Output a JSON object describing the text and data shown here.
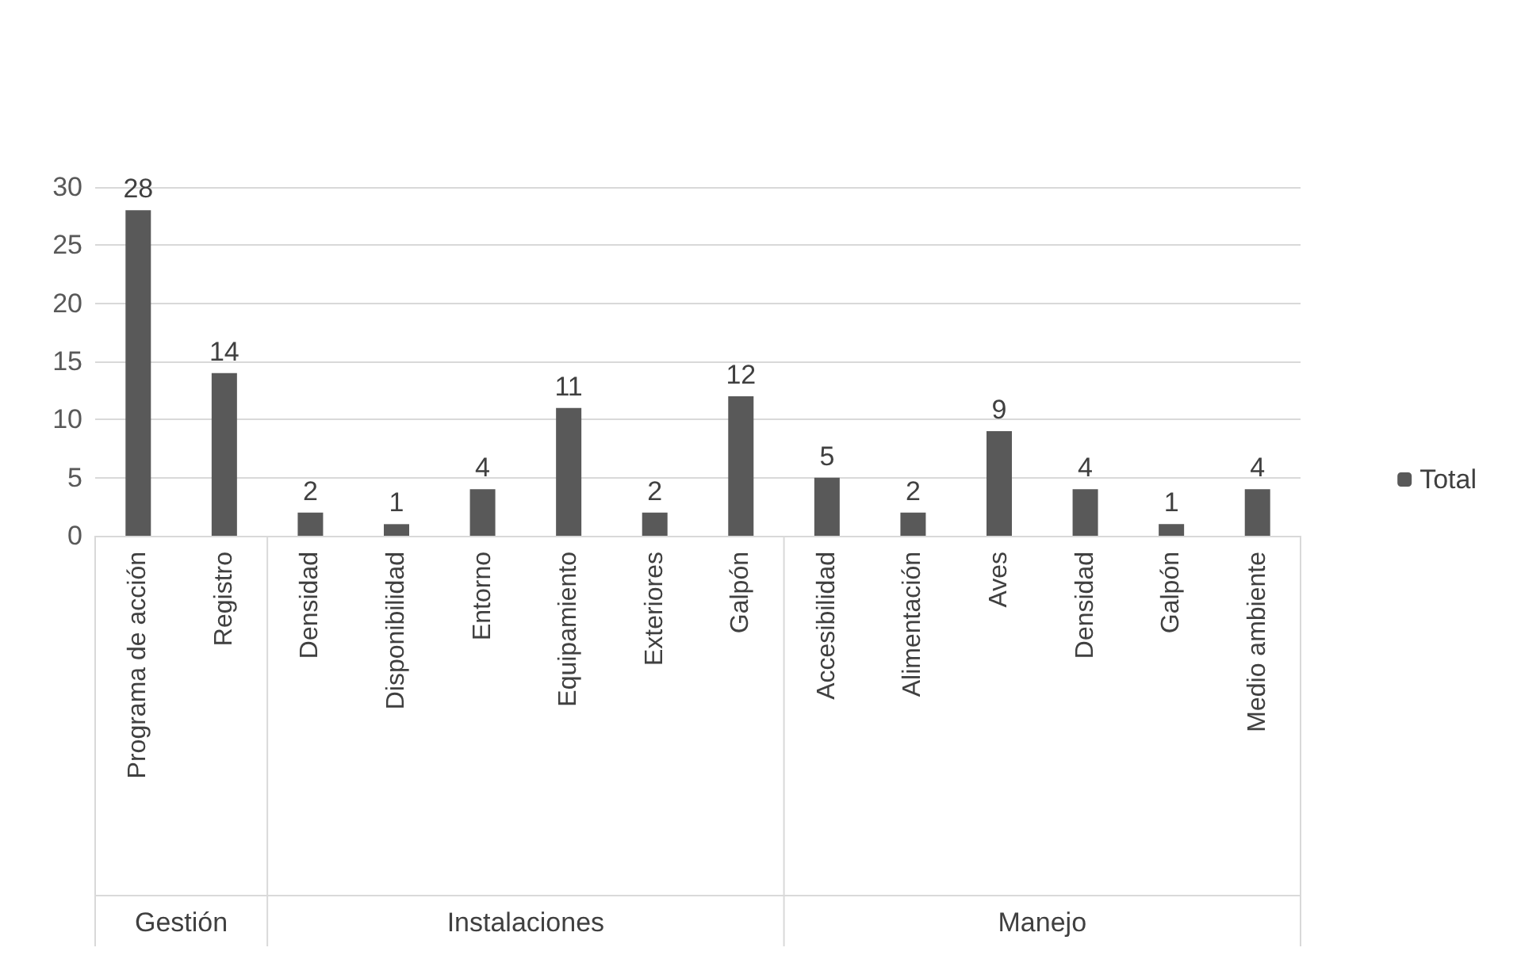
{
  "chart_data": {
    "type": "bar",
    "categories": [
      "Programa de acción",
      "Registro",
      "Densidad",
      "Disponibilidad",
      "Entorno",
      "Equipamiento",
      "Exteriores",
      "Galpón",
      "Accesibilidad",
      "Alimentación",
      "Aves",
      "Densidad",
      "Galpón",
      "Medio ambiente"
    ],
    "series": [
      {
        "name": "Total",
        "color": "#595959",
        "values": [
          28,
          14,
          2,
          1,
          4,
          11,
          2,
          12,
          5,
          2,
          9,
          4,
          1,
          4
        ]
      }
    ],
    "ylim": [
      0,
      30
    ],
    "yticks": [
      0,
      5,
      10,
      15,
      20,
      25,
      30
    ],
    "grid": "y",
    "legend": "right",
    "data_labels": true,
    "annotations": [
      "Gestión",
      "Instalaciones",
      "Manejo"
    ]
  }
}
